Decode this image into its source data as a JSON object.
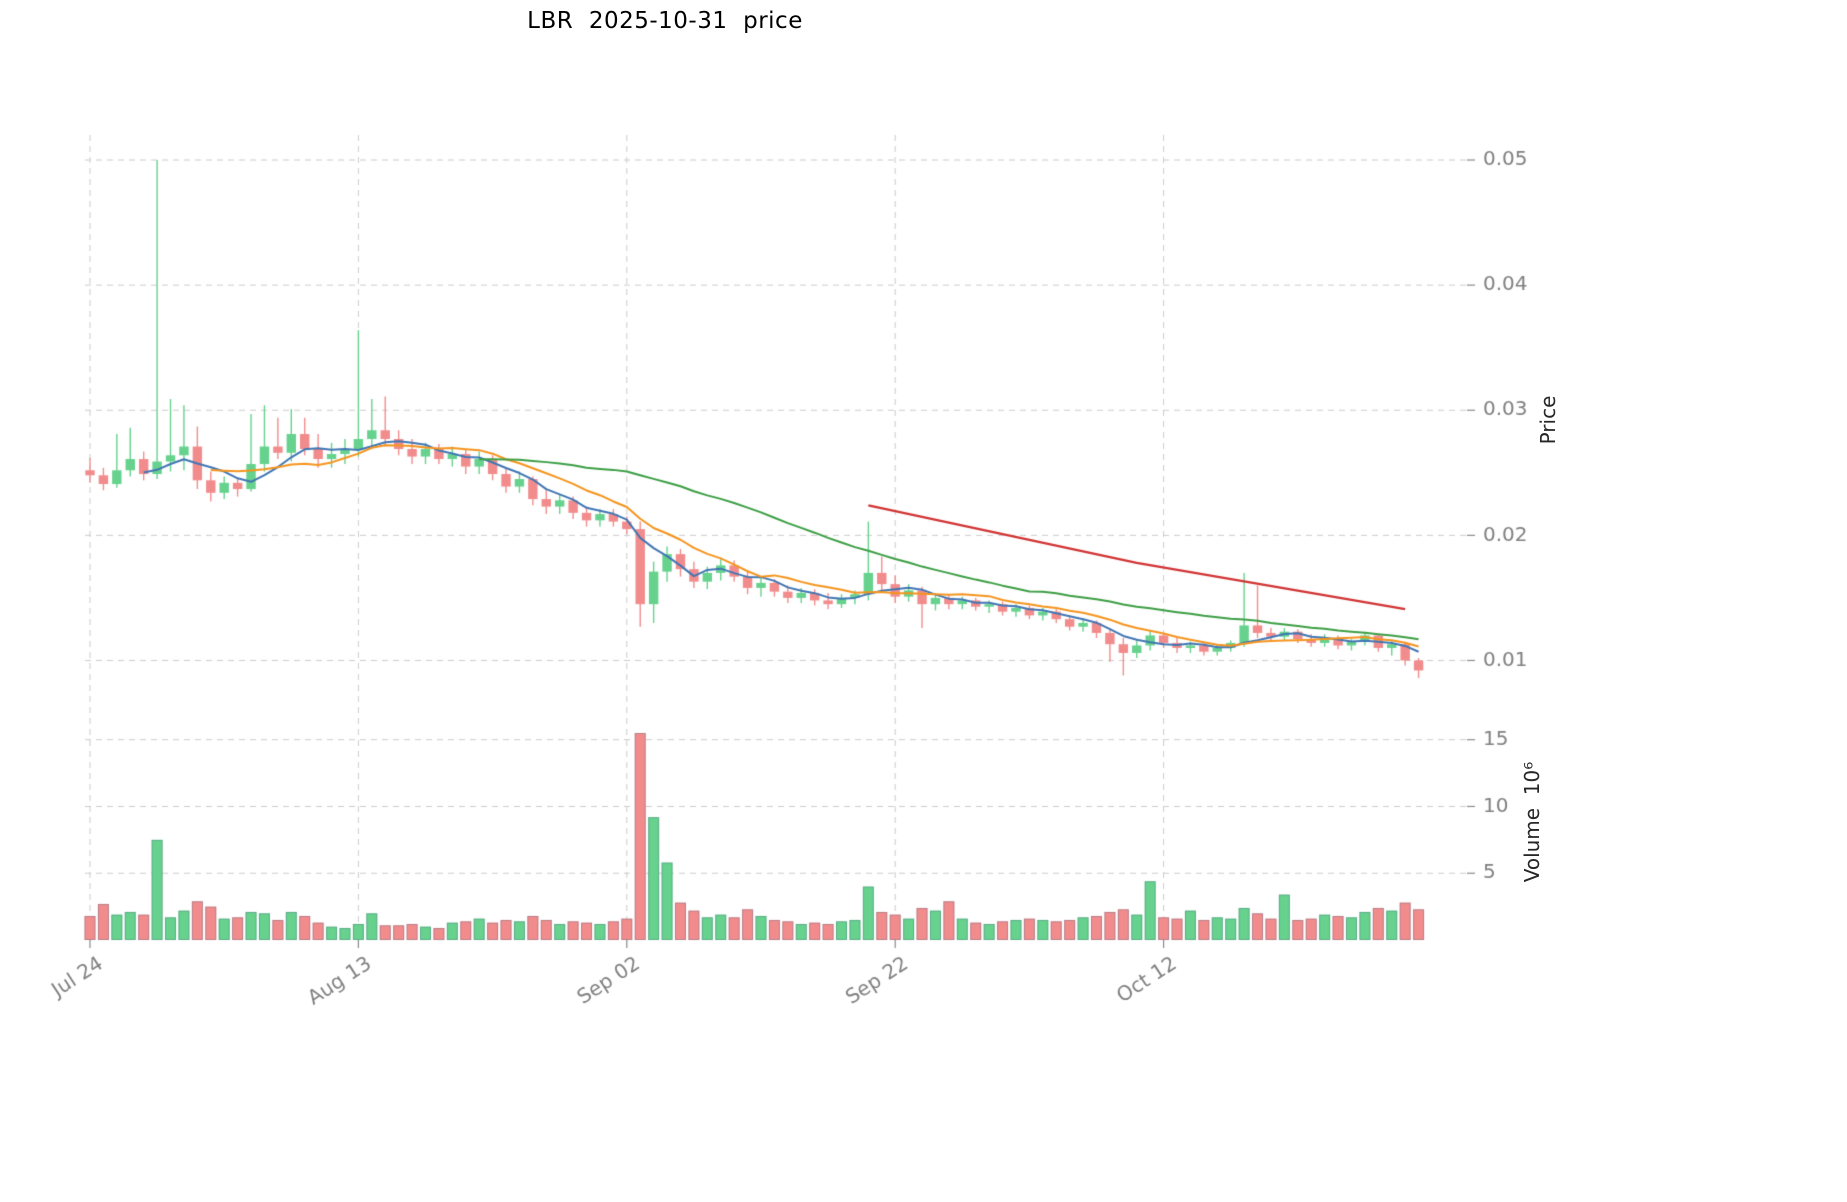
{
  "title": "LBR  2025-10-31  price",
  "chart_data": {
    "type": "candlestick+volume",
    "symbol": "LBR",
    "as_of_date": "2025-10-31",
    "x_axis": {
      "ticks": [
        {
          "date": "2025-07-24",
          "label": "Jul 24"
        },
        {
          "date": "2025-08-13",
          "label": "Aug 13"
        },
        {
          "date": "2025-09-02",
          "label": "Sep 02"
        },
        {
          "date": "2025-09-22",
          "label": "Sep 22"
        },
        {
          "date": "2025-10-12",
          "label": "Oct 12"
        }
      ]
    },
    "price_axis": {
      "label": "Price",
      "ylim": [
        0.007,
        0.052
      ],
      "ticks": [
        {
          "value": 0.01,
          "label": "0.01"
        },
        {
          "value": 0.02,
          "label": "0.02"
        },
        {
          "value": 0.03,
          "label": "0.03"
        },
        {
          "value": 0.04,
          "label": "0.04"
        },
        {
          "value": 0.05,
          "label": "0.05"
        }
      ]
    },
    "volume_axis": {
      "label": "Volume  10⁶",
      "unit": "millions",
      "ylim": [
        0,
        16.4
      ],
      "ticks": [
        {
          "value": 5,
          "label": "5"
        },
        {
          "value": 10,
          "label": "10"
        },
        {
          "value": 15,
          "label": "15"
        }
      ]
    },
    "colors": {
      "up": "#66d28d",
      "down": "#f28c8c",
      "ma_short": "#4076b4",
      "ma_mid": "#f5941d",
      "ma_long": "#3c9e44",
      "trend": "#d13434",
      "grid": "#cccccc",
      "tick_text": "#808080"
    },
    "overlays": {
      "moving_averages": [
        {
          "name": "MA5",
          "period": 5,
          "color_key": "ma_short"
        },
        {
          "name": "MA10",
          "period": 10,
          "color_key": "ma_mid"
        },
        {
          "name": "MA30",
          "period": 30,
          "color_key": "ma_long"
        }
      ],
      "trendline": {
        "color_key": "trend",
        "points": [
          {
            "date": "2025-09-20",
            "price": 0.0224
          },
          {
            "date": "2025-10-10",
            "price": 0.0178
          },
          {
            "date": "2025-10-30",
            "price": 0.0141
          }
        ]
      }
    },
    "columns": [
      "date",
      "open",
      "high",
      "low",
      "close",
      "volume_millions"
    ],
    "candles": [
      [
        "2025-07-24",
        0.0252,
        0.0262,
        0.0242,
        0.0248,
        1.8
      ],
      [
        "2025-07-25",
        0.0248,
        0.0254,
        0.0236,
        0.0241,
        2.7
      ],
      [
        "2025-07-26",
        0.0241,
        0.0281,
        0.0238,
        0.0252,
        1.9
      ],
      [
        "2025-07-27",
        0.0252,
        0.0286,
        0.0247,
        0.0261,
        2.1
      ],
      [
        "2025-07-28",
        0.0261,
        0.0267,
        0.0244,
        0.0249,
        1.9
      ],
      [
        "2025-07-29",
        0.0249,
        0.05,
        0.0245,
        0.0259,
        7.5
      ],
      [
        "2025-07-30",
        0.0259,
        0.0309,
        0.0251,
        0.0264,
        1.7
      ],
      [
        "2025-07-31",
        0.0264,
        0.0304,
        0.0252,
        0.0271,
        2.2
      ],
      [
        "2025-08-01",
        0.0271,
        0.0287,
        0.0237,
        0.0244,
        2.9
      ],
      [
        "2025-08-02",
        0.0244,
        0.0251,
        0.0227,
        0.0234,
        2.5
      ],
      [
        "2025-08-03",
        0.0234,
        0.0247,
        0.0229,
        0.0242,
        1.6
      ],
      [
        "2025-08-04",
        0.0242,
        0.0246,
        0.0231,
        0.0237,
        1.7
      ],
      [
        "2025-08-05",
        0.0237,
        0.0297,
        0.0235,
        0.0257,
        2.1
      ],
      [
        "2025-08-06",
        0.0257,
        0.0304,
        0.0251,
        0.0271,
        2.0
      ],
      [
        "2025-08-07",
        0.0271,
        0.0294,
        0.0261,
        0.0266,
        1.5
      ],
      [
        "2025-08-08",
        0.0266,
        0.0301,
        0.0259,
        0.0281,
        2.1
      ],
      [
        "2025-08-09",
        0.0281,
        0.0294,
        0.0264,
        0.0269,
        1.8
      ],
      [
        "2025-08-10",
        0.0269,
        0.0281,
        0.0254,
        0.0261,
        1.3
      ],
      [
        "2025-08-11",
        0.0261,
        0.0274,
        0.0254,
        0.0265,
        1.0
      ],
      [
        "2025-08-12",
        0.0265,
        0.0277,
        0.0257,
        0.0269,
        0.9
      ],
      [
        "2025-08-13",
        0.0269,
        0.0364,
        0.0263,
        0.0277,
        1.2
      ],
      [
        "2025-08-14",
        0.0277,
        0.0309,
        0.0269,
        0.0284,
        2.0
      ],
      [
        "2025-08-15",
        0.0284,
        0.0311,
        0.0271,
        0.0277,
        1.1
      ],
      [
        "2025-08-16",
        0.0277,
        0.0284,
        0.0264,
        0.0269,
        1.1
      ],
      [
        "2025-08-17",
        0.0269,
        0.0277,
        0.0257,
        0.0263,
        1.2
      ],
      [
        "2025-08-18",
        0.0263,
        0.0274,
        0.0257,
        0.0269,
        1.0
      ],
      [
        "2025-08-19",
        0.0269,
        0.0273,
        0.0257,
        0.0261,
        0.9
      ],
      [
        "2025-08-20",
        0.0261,
        0.0271,
        0.0255,
        0.0265,
        1.3
      ],
      [
        "2025-08-21",
        0.0265,
        0.0269,
        0.0249,
        0.0255,
        1.4
      ],
      [
        "2025-08-22",
        0.0255,
        0.0267,
        0.0249,
        0.0261,
        1.6
      ],
      [
        "2025-08-23",
        0.0261,
        0.0264,
        0.0244,
        0.0249,
        1.3
      ],
      [
        "2025-08-24",
        0.0249,
        0.0254,
        0.0234,
        0.0239,
        1.5
      ],
      [
        "2025-08-25",
        0.0239,
        0.0251,
        0.0234,
        0.0245,
        1.4
      ],
      [
        "2025-08-26",
        0.0245,
        0.0247,
        0.0224,
        0.0229,
        1.8
      ],
      [
        "2025-08-27",
        0.0229,
        0.0237,
        0.0217,
        0.0223,
        1.5
      ],
      [
        "2025-08-28",
        0.0223,
        0.0233,
        0.0217,
        0.0228,
        1.2
      ],
      [
        "2025-08-29",
        0.0228,
        0.0231,
        0.0213,
        0.0218,
        1.4
      ],
      [
        "2025-08-30",
        0.0218,
        0.0223,
        0.0207,
        0.0212,
        1.3
      ],
      [
        "2025-08-31",
        0.0212,
        0.0221,
        0.0207,
        0.0217,
        1.2
      ],
      [
        "2025-09-01",
        0.0217,
        0.0221,
        0.0207,
        0.0211,
        1.4
      ],
      [
        "2025-09-02",
        0.0211,
        0.0215,
        0.0201,
        0.0205,
        1.6
      ],
      [
        "2025-09-03",
        0.0205,
        0.0211,
        0.0127,
        0.0145,
        15.5
      ],
      [
        "2025-09-04",
        0.0145,
        0.0179,
        0.013,
        0.0171,
        9.2
      ],
      [
        "2025-09-05",
        0.0171,
        0.0191,
        0.0163,
        0.0185,
        5.8
      ],
      [
        "2025-09-06",
        0.0185,
        0.0189,
        0.0167,
        0.0173,
        2.8
      ],
      [
        "2025-09-07",
        0.0173,
        0.0179,
        0.0158,
        0.0163,
        2.2
      ],
      [
        "2025-09-08",
        0.0163,
        0.0175,
        0.0157,
        0.017,
        1.7
      ],
      [
        "2025-09-09",
        0.017,
        0.0181,
        0.0164,
        0.0176,
        1.9
      ],
      [
        "2025-09-10",
        0.0176,
        0.018,
        0.0163,
        0.0167,
        1.7
      ],
      [
        "2025-09-11",
        0.0167,
        0.0172,
        0.0153,
        0.0158,
        2.3
      ],
      [
        "2025-09-12",
        0.0158,
        0.0166,
        0.0151,
        0.0162,
        1.8
      ],
      [
        "2025-09-13",
        0.0162,
        0.0165,
        0.0151,
        0.0155,
        1.5
      ],
      [
        "2025-09-14",
        0.0155,
        0.016,
        0.0146,
        0.015,
        1.4
      ],
      [
        "2025-09-15",
        0.015,
        0.0158,
        0.0146,
        0.0154,
        1.2
      ],
      [
        "2025-09-16",
        0.0154,
        0.0157,
        0.0144,
        0.0148,
        1.3
      ],
      [
        "2025-09-17",
        0.0148,
        0.0154,
        0.0141,
        0.0145,
        1.2
      ],
      [
        "2025-09-18",
        0.0145,
        0.0153,
        0.0142,
        0.015,
        1.4
      ],
      [
        "2025-09-19",
        0.015,
        0.0156,
        0.0145,
        0.0153,
        1.5
      ],
      [
        "2025-09-20",
        0.0153,
        0.0211,
        0.0148,
        0.017,
        4.0
      ],
      [
        "2025-09-21",
        0.017,
        0.0183,
        0.0156,
        0.0161,
        2.1
      ],
      [
        "2025-09-22",
        0.0161,
        0.0168,
        0.0146,
        0.0151,
        1.9
      ],
      [
        "2025-09-23",
        0.0151,
        0.0161,
        0.0147,
        0.0156,
        1.6
      ],
      [
        "2025-09-24",
        0.0156,
        0.0159,
        0.0126,
        0.0145,
        2.4
      ],
      [
        "2025-09-25",
        0.0145,
        0.0154,
        0.014,
        0.015,
        2.2
      ],
      [
        "2025-09-26",
        0.015,
        0.0153,
        0.0141,
        0.0145,
        2.9
      ],
      [
        "2025-09-27",
        0.0145,
        0.0151,
        0.0141,
        0.0148,
        1.6
      ],
      [
        "2025-09-28",
        0.0148,
        0.015,
        0.014,
        0.0143,
        1.3
      ],
      [
        "2025-09-29",
        0.0143,
        0.0148,
        0.0138,
        0.0145,
        1.2
      ],
      [
        "2025-09-30",
        0.0145,
        0.0147,
        0.0136,
        0.0139,
        1.4
      ],
      [
        "2025-10-01",
        0.0139,
        0.0145,
        0.0135,
        0.0142,
        1.5
      ],
      [
        "2025-10-02",
        0.0142,
        0.0144,
        0.0133,
        0.0136,
        1.6
      ],
      [
        "2025-10-03",
        0.0136,
        0.0142,
        0.0132,
        0.0139,
        1.5
      ],
      [
        "2025-10-04",
        0.0139,
        0.0141,
        0.013,
        0.0133,
        1.4
      ],
      [
        "2025-10-05",
        0.0133,
        0.0136,
        0.0124,
        0.0127,
        1.5
      ],
      [
        "2025-10-06",
        0.0127,
        0.0134,
        0.0123,
        0.013,
        1.7
      ],
      [
        "2025-10-07",
        0.013,
        0.0132,
        0.0118,
        0.0122,
        1.8
      ],
      [
        "2025-10-08",
        0.0122,
        0.0126,
        0.0099,
        0.0113,
        2.1
      ],
      [
        "2025-10-09",
        0.0113,
        0.0118,
        0.0088,
        0.0106,
        2.3
      ],
      [
        "2025-10-10",
        0.0106,
        0.0116,
        0.0102,
        0.0112,
        1.9
      ],
      [
        "2025-10-11",
        0.0112,
        0.0124,
        0.0108,
        0.012,
        4.4
      ],
      [
        "2025-10-12",
        0.012,
        0.0122,
        0.011,
        0.0114,
        1.7
      ],
      [
        "2025-10-13",
        0.0114,
        0.0118,
        0.0106,
        0.011,
        1.6
      ],
      [
        "2025-10-14",
        0.011,
        0.0115,
        0.0106,
        0.0112,
        2.2
      ],
      [
        "2025-10-15",
        0.0112,
        0.0114,
        0.0104,
        0.0107,
        1.5
      ],
      [
        "2025-10-16",
        0.0107,
        0.0113,
        0.0104,
        0.011,
        1.7
      ],
      [
        "2025-10-17",
        0.011,
        0.0116,
        0.0107,
        0.0114,
        1.6
      ],
      [
        "2025-10-18",
        0.0114,
        0.017,
        0.0111,
        0.0128,
        2.4
      ],
      [
        "2025-10-19",
        0.0128,
        0.016,
        0.0118,
        0.0122,
        2.0
      ],
      [
        "2025-10-20",
        0.0122,
        0.0126,
        0.0116,
        0.0119,
        1.6
      ],
      [
        "2025-10-21",
        0.0119,
        0.0126,
        0.0116,
        0.0123,
        3.4
      ],
      [
        "2025-10-22",
        0.0123,
        0.0125,
        0.0114,
        0.0117,
        1.5
      ],
      [
        "2025-10-23",
        0.0117,
        0.0121,
        0.0111,
        0.0114,
        1.6
      ],
      [
        "2025-10-24",
        0.0114,
        0.0121,
        0.0111,
        0.0118,
        1.9
      ],
      [
        "2025-10-25",
        0.0118,
        0.012,
        0.0109,
        0.0112,
        1.8
      ],
      [
        "2025-10-26",
        0.0112,
        0.0117,
        0.0108,
        0.0115,
        1.7
      ],
      [
        "2025-10-27",
        0.0115,
        0.0123,
        0.0112,
        0.012,
        2.1
      ],
      [
        "2025-10-28",
        0.012,
        0.0121,
        0.0107,
        0.011,
        2.4
      ],
      [
        "2025-10-29",
        0.011,
        0.0116,
        0.0104,
        0.0113,
        2.2
      ],
      [
        "2025-10-30",
        0.0113,
        0.0115,
        0.0096,
        0.01,
        2.8
      ],
      [
        "2025-10-31",
        0.01,
        0.0102,
        0.0086,
        0.0092,
        2.3
      ]
    ]
  }
}
